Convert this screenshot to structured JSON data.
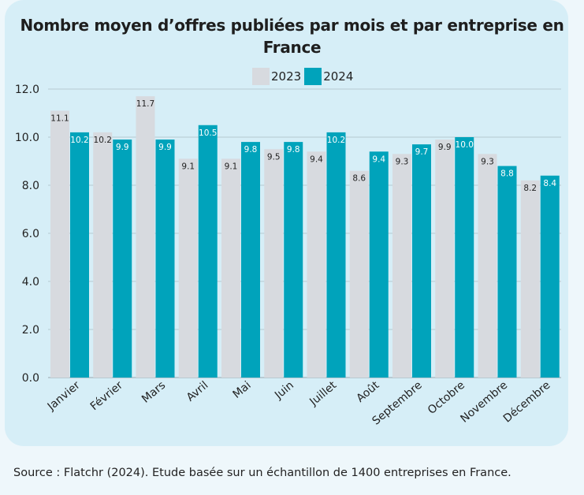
{
  "chart_data": {
    "type": "bar",
    "title": "Nombre moyen d’offres publiées par mois et par entreprise en France",
    "categories": [
      "Janvier",
      "Février",
      "Mars",
      "Avril",
      "Mai",
      "Juin",
      "Juillet",
      "Août",
      "Septembre",
      "Octobre",
      "Novembre",
      "Décembre"
    ],
    "series": [
      {
        "name": "2023",
        "color": "#d7dadf",
        "values": [
          11.1,
          10.2,
          11.7,
          9.1,
          9.1,
          9.5,
          9.4,
          8.6,
          9.3,
          9.9,
          9.3,
          8.2
        ],
        "labels": [
          "11.1",
          "10.2",
          "11.7",
          "9.1",
          "9.1",
          "9.5",
          "9.4",
          "8.6",
          "9.3",
          "9.9",
          "9.3",
          "8.2"
        ]
      },
      {
        "name": "2024",
        "color": "#00a3bb",
        "values": [
          10.2,
          9.9,
          9.9,
          10.5,
          9.8,
          9.8,
          10.2,
          9.4,
          9.7,
          10.0,
          8.8,
          8.4
        ],
        "labels": [
          "10.2",
          "9.9",
          "9.9",
          "10.5",
          "9.8",
          "9.8",
          "10.2",
          "9.4",
          "9.7",
          "10.0",
          "8.8",
          "8.4"
        ]
      }
    ],
    "ylim": [
      0,
      12
    ],
    "yticks": [
      "0.0",
      "2.0",
      "4.0",
      "6.0",
      "8.0",
      "10.0",
      "12.0"
    ],
    "xlabel": "",
    "ylabel": "",
    "grid": true,
    "legend": "top-center"
  },
  "footer": {
    "source": "Source : Flatchr (2024). Etude basée sur un échantillon de 1400 entreprises en France."
  }
}
